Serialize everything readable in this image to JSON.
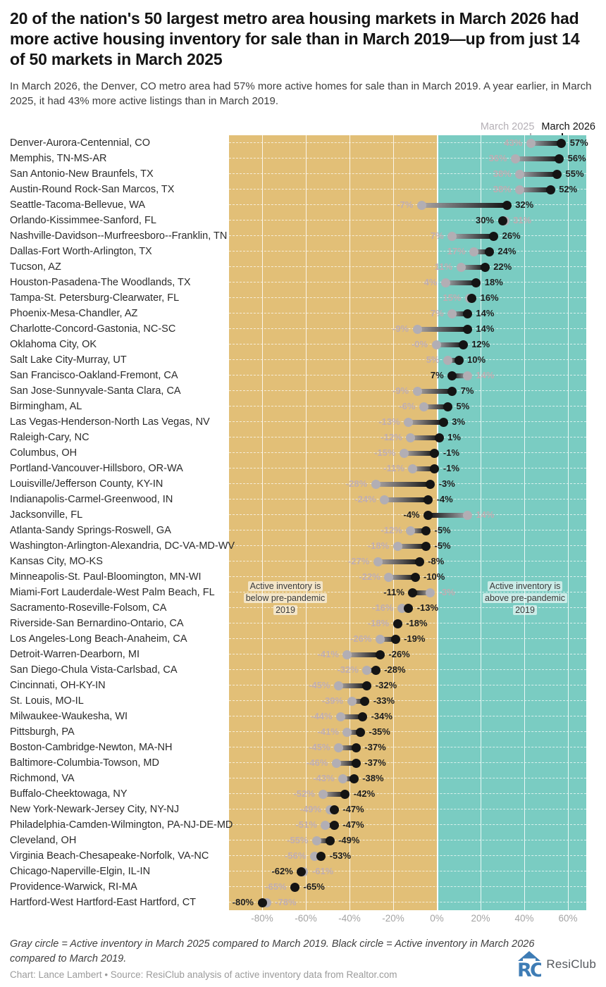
{
  "header": {
    "title": "20 of the nation's 50 largest metro area housing markets in March 2026 had more active housing inventory for sale than in March 2019—up from just 14 of 50 markets in March 2025",
    "subtitle": "In March 2026, the Denver, CO metro area had 57% more active homes for sale than in March 2019. A year earlier, in March 2025, it had 43% more active listings than in March 2019."
  },
  "legend": {
    "label_2025": "March 2025",
    "label_2026": "March 2026"
  },
  "chart_data": {
    "type": "dumbbell",
    "title": "Active housing inventory for sale vs. March 2019",
    "unit": "%",
    "xlim": [
      -95,
      68
    ],
    "grid": true,
    "legend_position": "top-right",
    "series": [
      {
        "name": "March 2025",
        "color": "#b2aeb4"
      },
      {
        "name": "March 2026",
        "color": "#141414"
      }
    ],
    "ticks": [
      {
        "v": -80,
        "label": "-80%"
      },
      {
        "v": -60,
        "label": "-60%"
      },
      {
        "v": -40,
        "label": "-40%"
      },
      {
        "v": -20,
        "label": "-20%"
      },
      {
        "v": 0,
        "label": "0%"
      },
      {
        "v": 20,
        "label": "20%"
      },
      {
        "v": 40,
        "label": "40%"
      },
      {
        "v": 60,
        "label": "60%"
      }
    ],
    "row_format": [
      "metro",
      "march_2025_value",
      "march_2025_label",
      "march_2026_value",
      "march_2026_label"
    ],
    "rows": [
      [
        "Denver-Aurora-Centennial, CO",
        43,
        "43%",
        57,
        "57%"
      ],
      [
        "Memphis, TN-MS-AR",
        36,
        "36%",
        56,
        "56%"
      ],
      [
        "San Antonio-New Braunfels, TX",
        38,
        "38%",
        55,
        "55%"
      ],
      [
        "Austin-Round Rock-San Marcos, TX",
        38,
        "38%",
        52,
        "52%"
      ],
      [
        "Seattle-Tacoma-Bellevue, WA",
        -7,
        "-7%",
        32,
        "32%"
      ],
      [
        "Orlando-Kissimmee-Sanford, FL",
        31,
        "31%",
        30,
        "30%"
      ],
      [
        "Nashville-Davidson--Murfreesboro--Franklin, TN",
        7,
        "7%",
        26,
        "26%"
      ],
      [
        "Dallas-Fort Worth-Arlington, TX",
        17,
        "17%",
        24,
        "24%"
      ],
      [
        "Tucson, AZ",
        11,
        "11%",
        22,
        "22%"
      ],
      [
        "Houston-Pasadena-The Woodlands, TX",
        4,
        "4%",
        18,
        "18%"
      ],
      [
        "Tampa-St. Petersburg-Clearwater, FL",
        15,
        "15%",
        16,
        "16%"
      ],
      [
        "Phoenix-Mesa-Chandler, AZ",
        7,
        "7%",
        14,
        "14%"
      ],
      [
        "Charlotte-Concord-Gastonia, NC-SC",
        -9,
        "-9%",
        14,
        "14%"
      ],
      [
        "Oklahoma City, OK",
        -0.3,
        "-0%",
        12,
        "12%"
      ],
      [
        "Salt Lake City-Murray, UT",
        5,
        "5%",
        10,
        "10%"
      ],
      [
        "San Francisco-Oakland-Fremont, CA",
        14,
        "14%",
        7,
        "7%"
      ],
      [
        "San Jose-Sunnyvale-Santa Clara, CA",
        -9,
        "-9%",
        7,
        "7%"
      ],
      [
        "Birmingham, AL",
        -6,
        "-6%",
        5,
        "5%"
      ],
      [
        "Las Vegas-Henderson-North Las Vegas, NV",
        -13,
        "-13%",
        3,
        "3%"
      ],
      [
        "Raleigh-Cary, NC",
        -12,
        "-12%",
        1,
        "1%"
      ],
      [
        "Columbus, OH",
        -15,
        "-15%",
        -1,
        "-1%"
      ],
      [
        "Portland-Vancouver-Hillsboro, OR-WA",
        -11,
        "-11%",
        -1,
        "-1%"
      ],
      [
        "Louisville/Jefferson County, KY-IN",
        -28,
        "-28%",
        -3,
        "-3%"
      ],
      [
        "Indianapolis-Carmel-Greenwood, IN",
        -24,
        "-24%",
        -4,
        "-4%"
      ],
      [
        "Jacksonville, FL",
        14,
        "14%",
        -4,
        "-4%"
      ],
      [
        "Atlanta-Sandy Springs-Roswell, GA",
        -12,
        "-12%",
        -5,
        "-5%"
      ],
      [
        "Washington-Arlington-Alexandria, DC-VA-MD-WV",
        -18,
        "-18%",
        -5,
        "-5%"
      ],
      [
        "Kansas City, MO-KS",
        -27,
        "-27%",
        -8,
        "-8%"
      ],
      [
        "Minneapolis-St. Paul-Bloomington, MN-WI",
        -22,
        "-22%",
        -10,
        "-10%"
      ],
      [
        "Miami-Fort Lauderdale-West Palm Beach, FL",
        -3,
        "-3%",
        -11,
        "-11%"
      ],
      [
        "Sacramento-Roseville-Folsom, CA",
        -16,
        "-16%",
        -13,
        "-13%"
      ],
      [
        "Riverside-San Bernardino-Ontario, CA",
        -18,
        "-18%",
        -18,
        "-18%"
      ],
      [
        "Los Angeles-Long Beach-Anaheim, CA",
        -26,
        "-26%",
        -19,
        "-19%"
      ],
      [
        "Detroit-Warren-Dearborn, MI",
        -41,
        "-41%",
        -26,
        "-26%"
      ],
      [
        "San Diego-Chula Vista-Carlsbad, CA",
        -32,
        "-32%",
        -28,
        "-28%"
      ],
      [
        "Cincinnati, OH-KY-IN",
        -45,
        "-45%",
        -32,
        "-32%"
      ],
      [
        "St. Louis, MO-IL",
        -39,
        "-39%",
        -33,
        "-33%"
      ],
      [
        "Milwaukee-Waukesha, WI",
        -44,
        "-44%",
        -34,
        "-34%"
      ],
      [
        "Pittsburgh, PA",
        -41,
        "-41%",
        -35,
        "-35%"
      ],
      [
        "Boston-Cambridge-Newton, MA-NH",
        -45,
        "-45%",
        -37,
        "-37%"
      ],
      [
        "Baltimore-Columbia-Towson, MD",
        -46,
        "-46%",
        -37,
        "-37%"
      ],
      [
        "Richmond, VA",
        -43,
        "-43%",
        -38,
        "-38%"
      ],
      [
        "Buffalo-Cheektowaga, NY",
        -52,
        "-52%",
        -42,
        "-42%"
      ],
      [
        "New York-Newark-Jersey City, NY-NJ",
        -49,
        "-49%",
        -47,
        "-47%"
      ],
      [
        "Philadelphia-Camden-Wilmington, PA-NJ-DE-MD",
        -51,
        "-51%",
        -47,
        "-47%"
      ],
      [
        "Cleveland, OH",
        -55,
        "-55%",
        -49,
        "-49%"
      ],
      [
        "Virginia Beach-Chesapeake-Norfolk, VA-NC",
        -56,
        "-56%",
        -53,
        "-53%"
      ],
      [
        "Chicago-Naperville-Elgin, IL-IN",
        -61,
        "-61%",
        -62,
        "-62%"
      ],
      [
        "Providence-Warwick, RI-MA",
        -65,
        "-65%",
        -65,
        "-65%"
      ],
      [
        "Hartford-West Hartford-East Hartford, CT",
        -78,
        "-78%",
        -80,
        "-80%"
      ]
    ],
    "annotations": {
      "below": [
        "Active inventory is",
        "below pre-pandemic",
        "2019"
      ],
      "above": [
        "Active inventory is",
        "above pre-pandemic",
        "2019"
      ]
    },
    "colors": {
      "negative_bg": "#e2bf77",
      "positive_bg": "#7accc2",
      "gray_dot": "#b2aeb4",
      "black_dot": "#141414",
      "gray_value_label": "#bfadb2"
    }
  },
  "footer": {
    "note": "Gray circle = Active inventory in March 2025 compared to March 2019. Black circle = Active inventory in March 2026 compared to March 2019.",
    "credit": "Chart: Lance Lambert • Source: ResiClub analysis of active inventory data from Realtor.com",
    "brand": "ResiClub"
  }
}
